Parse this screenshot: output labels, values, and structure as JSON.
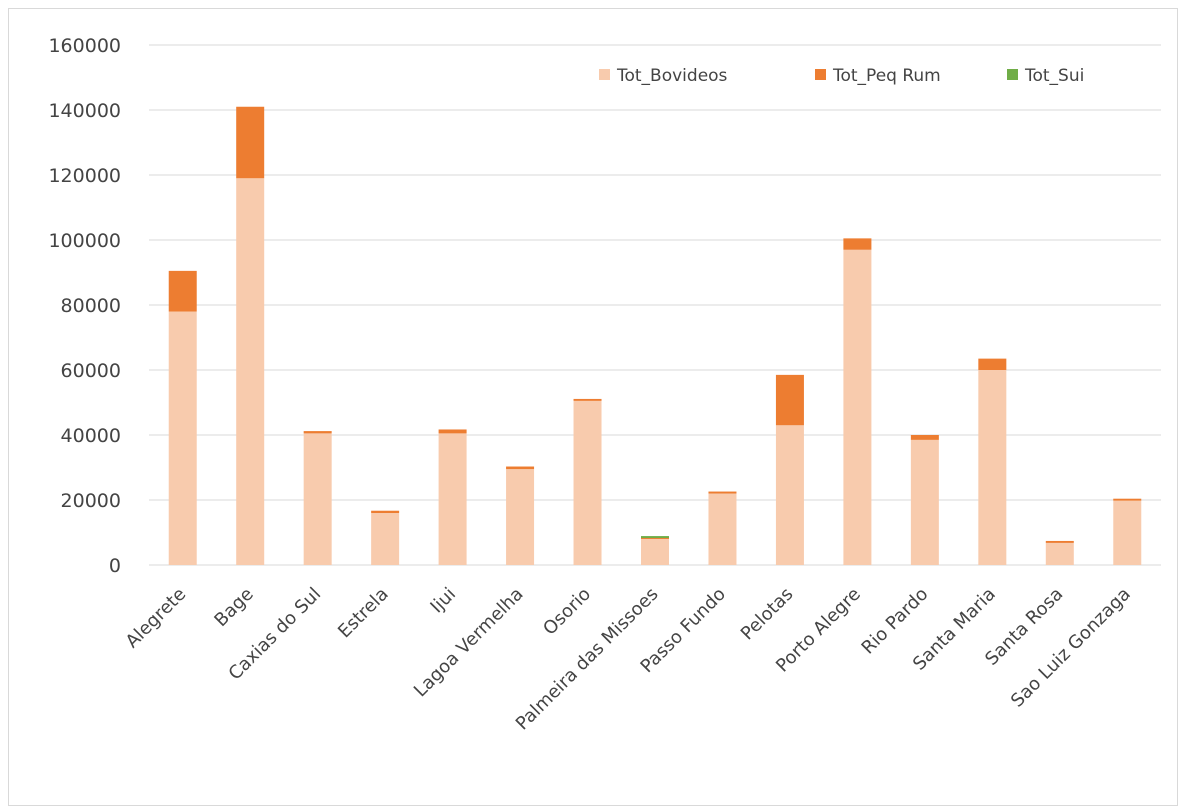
{
  "chart_data": {
    "type": "bar",
    "stacked": true,
    "title": "",
    "xlabel": "",
    "ylabel": "",
    "ylim": [
      0,
      160000
    ],
    "y_ticks": [
      0,
      20000,
      40000,
      60000,
      80000,
      100000,
      120000,
      140000,
      160000
    ],
    "y_tick_labels": [
      "0",
      "20000",
      "40000",
      "60000",
      "80000",
      "100000",
      "120000",
      "140000",
      "160000"
    ],
    "grid": true,
    "legend_position": "top-right",
    "categories": [
      "Alegrete",
      "Bage",
      "Caxias do Sul",
      "Estrela",
      "Ijui",
      "Lagoa Vermelha",
      "Osorio",
      "Palmeira das Missoes",
      "Passo Fundo",
      "Pelotas",
      "Porto Alegre",
      "Rio Pardo",
      "Santa Maria",
      "Santa Rosa",
      "Sao Luiz Gonzaga"
    ],
    "series": [
      {
        "name": "Tot_Bovideos",
        "color": "#f8cbad",
        "values": [
          78000,
          119000,
          40500,
          16000,
          40500,
          29500,
          50500,
          8000,
          22000,
          43000,
          97000,
          38500,
          60000,
          6800,
          19800
        ]
      },
      {
        "name": "Tot_Peq Rum",
        "color": "#ed7d31",
        "values": [
          12500,
          22000,
          700,
          700,
          1200,
          800,
          600,
          300,
          600,
          15500,
          3500,
          1500,
          3500,
          600,
          600
        ]
      },
      {
        "name": "Tot_Sui",
        "color": "#70ad47",
        "values": [
          0,
          0,
          0,
          0,
          0,
          0,
          0,
          600,
          0,
          0,
          0,
          0,
          0,
          0,
          0
        ]
      }
    ]
  }
}
